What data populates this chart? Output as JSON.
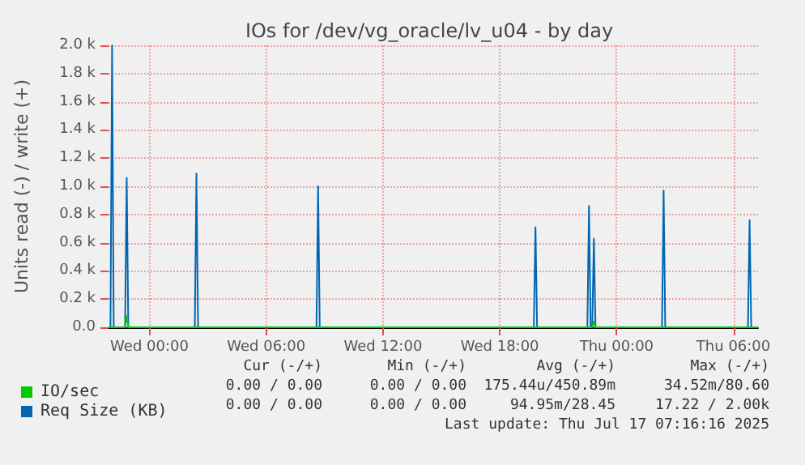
{
  "chart_data": {
    "type": "line",
    "title": "IOs for /dev/vg_oracle/lv_u04 - by day",
    "ylabel": "Units read (-) / write (+)",
    "xlim": [
      "2025-07-15T21:54",
      "2025-07-17T07:16"
    ],
    "xticks": [
      {
        "value": "2025-07-16T00:00",
        "label": "Wed 00:00"
      },
      {
        "value": "2025-07-16T06:00",
        "label": "Wed 06:00"
      },
      {
        "value": "2025-07-16T12:00",
        "label": "Wed 12:00"
      },
      {
        "value": "2025-07-16T18:00",
        "label": "Wed 18:00"
      },
      {
        "value": "2025-07-17T00:00",
        "label": "Thu 00:00"
      },
      {
        "value": "2025-07-17T06:00",
        "label": "Thu 06:00"
      }
    ],
    "ylim": [
      0,
      2000
    ],
    "yticks": [
      {
        "value": 0,
        "label": "0.0"
      },
      {
        "value": 200,
        "label": "0.2 k"
      },
      {
        "value": 400,
        "label": "0.4 k"
      },
      {
        "value": 600,
        "label": "0.6 k"
      },
      {
        "value": 800,
        "label": "0.8 k"
      },
      {
        "value": 1000,
        "label": "1.0 k"
      },
      {
        "value": 1200,
        "label": "1.2 k"
      },
      {
        "value": 1400,
        "label": "1.4 k"
      },
      {
        "value": 1600,
        "label": "1.6 k"
      },
      {
        "value": 1800,
        "label": "1.8 k"
      },
      {
        "value": 2000,
        "label": "2.0 k"
      }
    ],
    "grid": true,
    "legend": "bottom left",
    "marker": "none",
    "line_style": "solid",
    "series": [
      {
        "name": "IO/sec",
        "color": "#00cc00",
        "x": [
          "2025-07-15T21:54",
          "2025-07-15T22:45",
          "2025-07-15T22:50",
          "2025-07-15T22:55",
          "2025-07-16T22:45",
          "2025-07-16T22:50",
          "2025-07-16T22:55",
          "2025-07-17T07:16"
        ],
        "values": [
          0,
          0,
          80,
          0,
          0,
          40,
          0,
          0
        ]
      },
      {
        "name": "Req Size (KB)",
        "color": "#0066b3",
        "x": [
          "2025-07-15T21:54",
          "2025-07-15T22:00",
          "2025-07-15T22:05",
          "2025-07-15T22:10",
          "2025-07-15T22:45",
          "2025-07-15T22:50",
          "2025-07-15T22:55",
          "2025-07-16T02:20",
          "2025-07-16T02:25",
          "2025-07-16T02:30",
          "2025-07-16T08:35",
          "2025-07-16T08:40",
          "2025-07-16T08:45",
          "2025-07-16T19:45",
          "2025-07-16T19:50",
          "2025-07-16T19:55",
          "2025-07-16T22:30",
          "2025-07-16T22:35",
          "2025-07-16T22:40",
          "2025-07-16T22:45",
          "2025-07-16T22:50",
          "2025-07-16T22:55",
          "2025-07-17T02:20",
          "2025-07-17T02:25",
          "2025-07-17T02:30",
          "2025-07-17T06:45",
          "2025-07-17T06:50",
          "2025-07-17T06:55",
          "2025-07-17T07:16"
        ],
        "values": [
          0,
          0,
          2000,
          0,
          0,
          1060,
          0,
          0,
          1090,
          0,
          0,
          1000,
          0,
          0,
          710,
          0,
          0,
          860,
          0,
          0,
          630,
          0,
          0,
          970,
          0,
          0,
          760,
          0,
          0
        ]
      }
    ],
    "annotations": [
      "Cur (-/+)",
      "Min (-/+)",
      "Avg (-/+)",
      "Max (-/+)",
      "0.00 / 0.00",
      "0.00 / 0.00",
      "175.44u/450.89m",
      "34.52m/80.60",
      "0.00 / 0.00",
      "0.00 / 0.00",
      "94.95m/28.45",
      "17.22 / 2.00k",
      "Last update: Thu Jul 17 07:16:16 2025"
    ]
  }
}
